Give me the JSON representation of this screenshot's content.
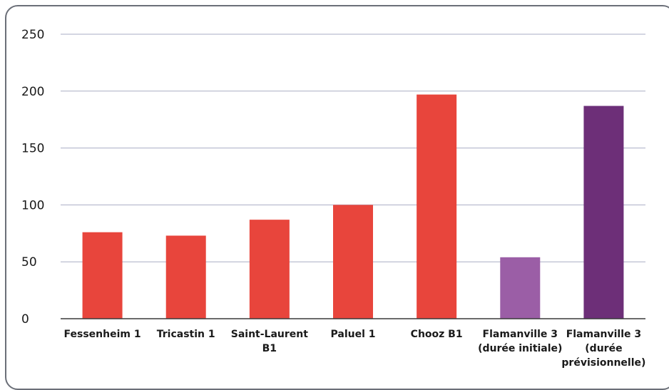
{
  "chart_data": {
    "type": "bar",
    "title": "",
    "xlabel": "",
    "ylabel": "",
    "ylim": [
      0,
      250
    ],
    "yticks": [
      0,
      50,
      100,
      150,
      200,
      250
    ],
    "grid": true,
    "categories": [
      [
        "Fessenheim 1"
      ],
      [
        "Tricastin 1"
      ],
      [
        "Saint-Laurent",
        "B1"
      ],
      [
        "Paluel 1"
      ],
      [
        "Chooz B1"
      ],
      [
        "Flamanville 3",
        "(durée initiale)"
      ],
      [
        "Flamanville 3",
        "(durée",
        "prévisionnelle)"
      ]
    ],
    "values": [
      76,
      73,
      87,
      100,
      197,
      54,
      187
    ],
    "colors": [
      "#e8453c",
      "#e8453c",
      "#e8453c",
      "#e8453c",
      "#e8453c",
      "#9b5ea6",
      "#6d2f78"
    ]
  }
}
